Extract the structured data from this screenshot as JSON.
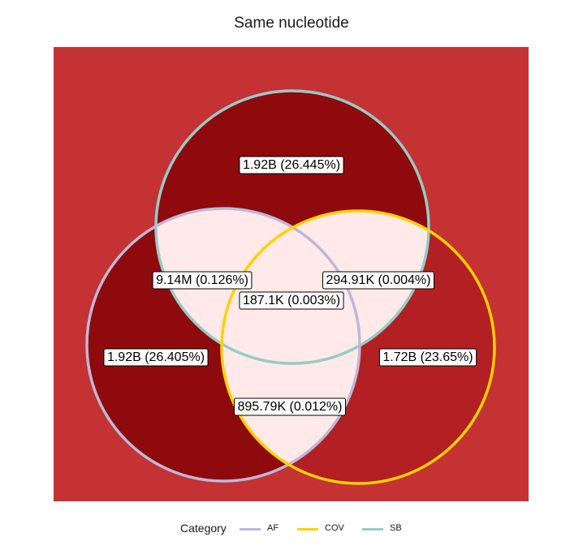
{
  "title": "Same nucleotide",
  "colors": {
    "panel": "#C43233",
    "dark_red": "#8E0A0C",
    "medium_red": "#B22024",
    "light_pink": "#FFE9E9"
  },
  "sets": [
    {
      "id": "SB",
      "name": "SB",
      "color": "#95CCC6"
    },
    {
      "id": "AF",
      "name": "AF",
      "color": "#BDB8D8"
    },
    {
      "id": "COV",
      "name": "COV",
      "color": "#FFD100"
    }
  ],
  "regions": {
    "sb_only": "1.92B (26.445%)",
    "af_only": "1.92B (26.405%)",
    "cov_only": "1.72B (23.65%)",
    "sb_af": "9.14M (0.126%)",
    "sb_cov": "294.91K (0.004%)",
    "af_cov": "895.79K (0.012%)",
    "all": "187.1K (0.003%)"
  },
  "legend": {
    "title": "Category",
    "items": [
      {
        "label": "AF",
        "color": "#BDB8D8"
      },
      {
        "label": "COV",
        "color": "#FFD100"
      },
      {
        "label": "SB",
        "color": "#95CCC6"
      }
    ]
  }
}
